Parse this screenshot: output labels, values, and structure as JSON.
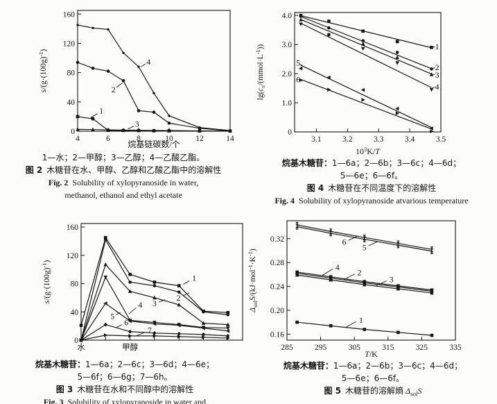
{
  "page": {
    "kind": "scanned journal figure page",
    "ink": "#141414",
    "paper": "#fcfcfb"
  },
  "chart_data": [
    {
      "id": "fig2",
      "type": "line",
      "xlabel": "烷基链碳数/个",
      "ylabel": "*s*/(g·(100g)^{-1})",
      "x_range": [
        4,
        14
      ],
      "y_range": [
        0,
        165
      ],
      "x_ticks": [
        4,
        6,
        8,
        10,
        12,
        14
      ],
      "x_tick_labels": [
        "4",
        "6",
        "8",
        "10",
        "12",
        "14"
      ],
      "y_ticks": [
        0,
        40,
        80,
        120,
        160
      ],
      "y_tick_labels": [
        "0",
        "40",
        "80",
        "120",
        "160"
      ],
      "series": [
        {
          "label": "1",
          "name": "水",
          "marker": "sq",
          "x": [
            4,
            5,
            6,
            7,
            8,
            9,
            10,
            12,
            14
          ],
          "y": [
            20,
            17,
            1.2,
            1,
            0.8,
            0.6,
            0.5,
            0.3,
            0.2
          ]
        },
        {
          "label": "2",
          "name": "甲醇",
          "marker": "c",
          "x": [
            4,
            5,
            6,
            7,
            8,
            9,
            10,
            12,
            14
          ],
          "y": [
            94,
            86,
            82,
            69,
            28,
            26,
            11,
            4,
            0.5
          ]
        },
        {
          "label": "3",
          "name": "乙醇",
          "marker": "tu",
          "x": [
            4,
            5,
            6,
            7,
            8,
            9,
            10,
            12,
            14
          ],
          "y": [
            2.5,
            2.2,
            1.8,
            1.5,
            1.2,
            1,
            0.8,
            0.4,
            0.3
          ]
        },
        {
          "label": "4",
          "name": "乙酸乙酯",
          "marker": "dot",
          "x": [
            4,
            5,
            6,
            7,
            8,
            9,
            10,
            12,
            14
          ],
          "y": [
            145,
            141,
            139,
            107,
            88,
            52,
            21,
            5,
            0.8
          ]
        }
      ],
      "labels": [
        {
          "t": "1",
          "x": 5.55,
          "y": 28,
          "line": [
            [
              5.3,
              24
            ],
            [
              4.85,
              18.5
            ]
          ]
        },
        {
          "t": "2",
          "x": 6.35,
          "y": 57,
          "line": [
            [
              6.55,
              60
            ],
            [
              6.95,
              66
            ]
          ]
        },
        {
          "t": "3",
          "x": 7.9,
          "y": 10,
          "line": [
            [
              7.7,
              7
            ],
            [
              7.3,
              3
            ]
          ]
        },
        {
          "t": "4",
          "x": 8.65,
          "y": 95,
          "line": [
            [
              8.45,
              92
            ],
            [
              8.15,
              88
            ]
          ]
        }
      ],
      "captions": {
        "legend1": "1—水；2—甲醇；3—乙醇；4—乙酸乙酯。",
        "cn_label": "图 2",
        "cn_text": "木糖苷在水、甲醇、乙醇和乙酸乙酯中的溶解性",
        "en_label": "Fig. 2",
        "en_text": "Solubility of xylopyranoside in water,",
        "en_text2": "methanol, ethanol and ethyl acetate"
      }
    },
    {
      "id": "fig4",
      "type": "scatter-with-fit-lines",
      "xlabel": "10^{3}K/*T*",
      "ylabel": "lg(*c*_{s}/(mmol·L^{-1}))",
      "x_range": [
        3.03,
        3.5
      ],
      "y_range": [
        0,
        4.1
      ],
      "x_ticks": [
        3.1,
        3.2,
        3.3,
        3.4,
        3.5
      ],
      "x_tick_labels": [
        "3.1",
        "3.2",
        "3.3",
        "3.4",
        "3.5"
      ],
      "y_ticks": [
        0,
        1,
        2,
        3,
        4
      ],
      "y_tick_labels": [
        "0",
        "1.0",
        "2.0",
        "3.0",
        "4.0"
      ],
      "series": [
        {
          "label": "1",
          "name": "6a",
          "marker": "sq",
          "x": [
            3.05,
            3.14,
            3.25,
            3.36,
            3.47
          ],
          "y": [
            4.0,
            3.8,
            3.46,
            3.1,
            2.9
          ],
          "fit": [
            [
              3.05,
              3.99
            ],
            [
              3.47,
              2.89
            ]
          ]
        },
        {
          "label": "2",
          "name": "6b",
          "marker": "c",
          "x": [
            3.05,
            3.14,
            3.25,
            3.36,
            3.47
          ],
          "y": [
            3.97,
            3.57,
            3.13,
            2.73,
            2.16
          ],
          "fit": [
            [
              3.05,
              3.96
            ],
            [
              3.47,
              2.17
            ]
          ]
        },
        {
          "label": "3",
          "name": "6c",
          "marker": "tu",
          "x": [
            3.05,
            3.14,
            3.25,
            3.36,
            3.47
          ],
          "y": [
            3.85,
            3.34,
            3.02,
            2.56,
            1.97
          ],
          "fit": [
            [
              3.05,
              3.86
            ],
            [
              3.47,
              1.99
            ]
          ]
        },
        {
          "label": "4",
          "name": "6d",
          "marker": "td",
          "x": [
            3.05,
            3.14,
            3.25,
            3.36,
            3.47
          ],
          "y": [
            3.7,
            3.33,
            2.86,
            2.37,
            1.45
          ],
          "fit": [
            [
              3.05,
              3.73
            ],
            [
              3.47,
              1.52
            ]
          ]
        },
        {
          "label": "5",
          "name": "6e",
          "marker": "tl",
          "x": [
            3.05,
            3.14,
            3.25,
            3.36,
            3.47
          ],
          "y": [
            2.18,
            1.87,
            1.44,
            0.8,
            0.12
          ],
          "fit": [
            [
              3.05,
              2.29
            ],
            [
              3.47,
              0.15
            ]
          ]
        },
        {
          "label": "6",
          "name": "6f",
          "marker": "tr",
          "x": [
            3.05,
            3.14,
            3.25,
            3.36,
            3.47
          ],
          "y": [
            1.78,
            1.45,
            1.1,
            0.64,
            0.02
          ],
          "fit": [
            [
              3.05,
              1.8
            ],
            [
              3.47,
              0.1
            ]
          ]
        }
      ],
      "labels": [
        {
          "t": "5",
          "x": 3.041,
          "y": 2.37,
          "line": [
            [
              3.048,
              2.32
            ],
            [
              3.055,
              2.28
            ]
          ]
        },
        {
          "t": "6",
          "x": 3.041,
          "y": 1.8,
          "line": [
            [
              3.048,
              1.77
            ],
            [
              3.054,
              1.75
            ]
          ]
        },
        {
          "t": "1",
          "x": 3.488,
          "y": 2.93,
          "line": [
            [
              3.472,
              2.9
            ],
            [
              3.481,
              2.92
            ]
          ]
        },
        {
          "t": "2",
          "x": 3.488,
          "y": 2.22,
          "line": [
            [
              3.472,
              2.17
            ],
            [
              3.481,
              2.21
            ]
          ]
        },
        {
          "t": "3",
          "x": 3.488,
          "y": 1.96,
          "line": [
            [
              3.472,
              1.98
            ],
            [
              3.481,
              1.97
            ]
          ]
        },
        {
          "t": "4",
          "x": 3.488,
          "y": 1.55,
          "line": [
            [
              3.472,
              1.5
            ],
            [
              3.481,
              1.54
            ]
          ]
        }
      ],
      "captions": {
        "legend_prefix": "烷基木糖苷：",
        "legend1": "1—6a；2—6b；3—6c；4—6d；",
        "legend2": "5—6e；6—6f。",
        "cn_label": "图 4",
        "cn_text": "木糖苷在不同温度下的溶解性",
        "en_label": "Fig. 4",
        "en_text": "Solubility of xylopyranoside atvarious temperature"
      }
    },
    {
      "id": "fig3",
      "type": "line",
      "xlabel": "",
      "ylabel": "*s*/(g·(100g)^{-1})",
      "x_range": [
        0,
        6.6
      ],
      "y_range": [
        0,
        165
      ],
      "x_ticks": [
        0,
        1,
        2,
        3,
        4,
        5,
        6
      ],
      "x_tick_labels": [
        "水",
        "",
        "甲醇",
        "",
        "",
        "",
        ""
      ],
      "y_ticks": [
        0,
        40,
        80,
        120,
        160
      ],
      "y_tick_labels": [
        "0",
        "40",
        "80",
        "120",
        "160"
      ],
      "series": [
        {
          "label": "1",
          "name": "6a",
          "marker": "sq",
          "x": [
            0,
            1,
            2,
            3,
            4,
            5,
            6
          ],
          "y": [
            21,
            145,
            93,
            82,
            77,
            41,
            39
          ]
        },
        {
          "label": "2",
          "name": "6c",
          "marker": "c",
          "x": [
            0,
            1,
            2,
            3,
            4,
            5,
            6
          ],
          "y": [
            0,
            142,
            82,
            77,
            68,
            40,
            36
          ]
        },
        {
          "label": "3",
          "name": "6d",
          "marker": "tu",
          "x": [
            0,
            1,
            2,
            3,
            4,
            5,
            6
          ],
          "y": [
            0,
            107,
            69,
            60,
            50,
            24,
            22
          ]
        },
        {
          "label": "4",
          "name": "6e",
          "marker": "td",
          "x": [
            0,
            1,
            2,
            3,
            4,
            5,
            6
          ],
          "y": [
            0,
            89,
            28,
            25,
            22,
            18,
            17
          ]
        },
        {
          "label": "5",
          "name": "6f",
          "marker": "tl",
          "x": [
            0,
            1,
            2,
            3,
            4,
            5,
            6
          ],
          "y": [
            0,
            52,
            27,
            23,
            21,
            17,
            13
          ]
        },
        {
          "label": "6",
          "name": "6g",
          "marker": "di",
          "x": [
            0,
            1,
            2,
            3,
            4,
            5,
            6
          ],
          "y": [
            0,
            22,
            12,
            10,
            9,
            8,
            6
          ]
        },
        {
          "label": "7",
          "name": "6h",
          "marker": "tr",
          "x": [
            0,
            1,
            2,
            3,
            4,
            5,
            6
          ],
          "y": [
            0,
            7,
            6,
            6,
            5,
            4,
            3
          ]
        }
      ],
      "labels": [
        {
          "t": "1",
          "x": 4.62,
          "y": 88,
          "line": [
            [
              4.42,
              84
            ],
            [
              4.18,
              79
            ]
          ]
        },
        {
          "t": "2",
          "x": 3.98,
          "y": 60,
          "line": [
            [
              4.18,
              63
            ],
            [
              4.42,
              67
            ]
          ]
        },
        {
          "t": "3",
          "x": 3.0,
          "y": 52,
          "line": [
            [
              3.18,
              54
            ],
            [
              3.42,
              57
            ]
          ]
        },
        {
          "t": "4",
          "x": 2.42,
          "y": 50,
          "line": [
            [
              2.25,
              46
            ],
            [
              1.95,
              37
            ]
          ]
        },
        {
          "t": "5",
          "x": 1.28,
          "y": 34,
          "line": [
            [
              1.42,
              36
            ],
            [
              1.6,
              39
            ]
          ]
        },
        {
          "t": "6",
          "x": 1.85,
          "y": 25,
          "line": [
            [
              1.68,
              22
            ],
            [
              1.45,
              18
            ]
          ]
        },
        {
          "t": "7",
          "x": 2.8,
          "y": 14,
          "line": [
            [
              2.6,
              11
            ],
            [
              2.28,
              6.5
            ]
          ]
        }
      ],
      "captions": {
        "legend_prefix": "烷基木糖苷：",
        "legend1": "1—6a；2—6c；3—6d；4—6e；",
        "legend2": "5—6f；6—6g；7—6h。",
        "cn_label": "图 3",
        "cn_text": "木糖苷在水和不同醇中的溶解性",
        "en_label": "Fig. 3",
        "en_text": "Solubility of xylopyranoside in water and"
      }
    },
    {
      "id": "fig5",
      "type": "line",
      "xlabel": "*T*/K",
      "ylabel": "*Δ*_{sol}*S*/(kJ·mol^{-1}·K^{-1})",
      "x_range": [
        285,
        335
      ],
      "y_range": [
        0.15,
        0.35
      ],
      "x_ticks": [
        285,
        295,
        305,
        315,
        325,
        335
      ],
      "x_tick_labels": [
        "285",
        "295",
        "305",
        "315",
        "325",
        "335"
      ],
      "y_ticks": [
        0.16,
        0.2,
        0.24,
        0.28,
        0.32
      ],
      "y_tick_labels": [
        "0.16",
        "0.20",
        "0.24",
        "0.28",
        "0.32"
      ],
      "series": [
        {
          "label": "1",
          "name": "6a",
          "marker": "sq",
          "x": [
            288,
            298,
            308,
            318,
            328
          ],
          "y": [
            0.18,
            0.174,
            0.168,
            0.163,
            0.158
          ]
        },
        {
          "label": "2",
          "name": "6b",
          "marker": "sq",
          "x": [
            288,
            298,
            308,
            318,
            328
          ],
          "y": [
            0.262,
            0.254,
            0.246,
            0.239,
            0.232
          ]
        },
        {
          "label": "3",
          "name": "6c",
          "marker": "tu",
          "x": [
            288,
            298,
            308,
            318,
            328
          ],
          "y": [
            0.259,
            0.251,
            0.243,
            0.236,
            0.229
          ]
        },
        {
          "label": "4",
          "name": "6d",
          "marker": "td",
          "x": [
            288,
            298,
            308,
            318,
            328
          ],
          "y": [
            0.264,
            0.256,
            0.248,
            0.241,
            0.234
          ]
        },
        {
          "label": "5",
          "name": "6e",
          "marker": "ib",
          "x": [
            288,
            298,
            308,
            318,
            328
          ],
          "y": [
            0.34,
            0.329,
            0.319,
            0.309,
            0.299
          ]
        },
        {
          "label": "6",
          "name": "6f",
          "marker": "ib",
          "x": [
            288,
            298,
            308,
            318,
            328
          ],
          "y": [
            0.343,
            0.332,
            0.322,
            0.312,
            0.302
          ]
        }
      ],
      "labels": [
        {
          "t": "6",
          "x": 302,
          "y": 0.3145,
          "line": [
            [
              303.2,
              0.317
            ],
            [
              306,
              0.3245
            ]
          ]
        },
        {
          "t": "5",
          "x": 308,
          "y": 0.3055,
          "line": [
            [
              309.2,
              0.308
            ],
            [
              312,
              0.3155
            ]
          ]
        },
        {
          "t": "4",
          "x": 300,
          "y": 0.272,
          "line": [
            [
              298.6,
              0.2693
            ],
            [
              295.5,
              0.2585
            ]
          ]
        },
        {
          "t": "2",
          "x": 306.5,
          "y": 0.2635,
          "line": [
            [
              305.1,
              0.2608
            ],
            [
              302,
              0.2515
            ]
          ]
        },
        {
          "t": "3",
          "x": 316,
          "y": 0.252,
          "line": [
            [
              314.6,
              0.2493
            ],
            [
              311.5,
              0.2415
            ]
          ]
        },
        {
          "t": "1",
          "x": 307,
          "y": 0.1835,
          "line": [
            [
              305.5,
              0.181
            ],
            [
              302.5,
              0.1718
            ]
          ]
        }
      ],
      "captions": {
        "legend_prefix": "烷基木糖苷：",
        "legend1": "1—6a；2—6b；3—6c；4—6d；",
        "legend2": "5—6e；6—6f。",
        "cn_label": "图 5",
        "cn_text": "木糖苷的溶解熵 *Δ*_{sol}*S*"
      }
    }
  ]
}
